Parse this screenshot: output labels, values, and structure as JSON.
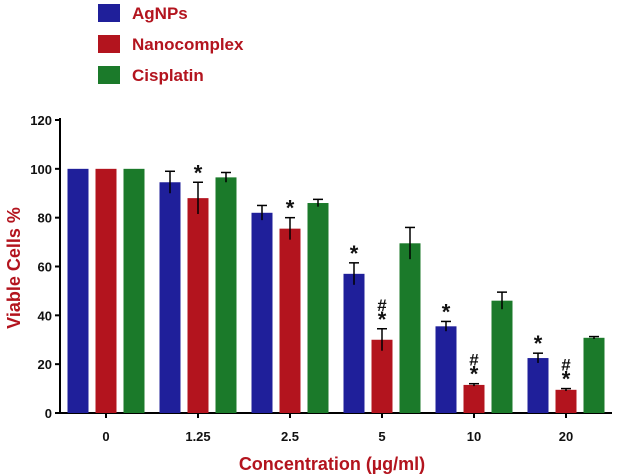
{
  "chart_data": {
    "type": "bar",
    "title": "",
    "xlabel": "Concentration (µg/ml)",
    "ylabel": "Viable Cells %",
    "ylim": [
      0,
      120
    ],
    "yticks": [
      "0",
      "20",
      "40",
      "60",
      "80",
      "100",
      "120"
    ],
    "categories": [
      "0",
      "1.25",
      "2.5",
      "5",
      "10",
      "20"
    ],
    "legend_position": "top-left",
    "series": [
      {
        "name": "AgNPs",
        "color": "#1f1f9a",
        "values": [
          100,
          94.5,
          82,
          57,
          35.5,
          22.5
        ],
        "errors": [
          0,
          4.5,
          3,
          4.5,
          2,
          2
        ],
        "annotations": [
          "",
          "",
          "",
          "*",
          "*",
          "*"
        ]
      },
      {
        "name": "Nanocomplex",
        "color": "#b3141e",
        "values": [
          100,
          88,
          75.5,
          30,
          11.5,
          9.5
        ],
        "errors": [
          0,
          6.5,
          4.5,
          4.5,
          0.5,
          0.5
        ],
        "annotations": [
          "",
          "*",
          "*",
          "#*",
          "#*",
          "#*"
        ]
      },
      {
        "name": "Cisplatin",
        "color": "#1b7a2a",
        "values": [
          100,
          96.5,
          86,
          69.5,
          46,
          30.8
        ],
        "errors": [
          0,
          2,
          1.5,
          6.5,
          3.5,
          0.5
        ],
        "annotations": [
          "",
          "",
          "",
          "",
          "",
          ""
        ]
      }
    ],
    "label_color": "#b3141e"
  }
}
